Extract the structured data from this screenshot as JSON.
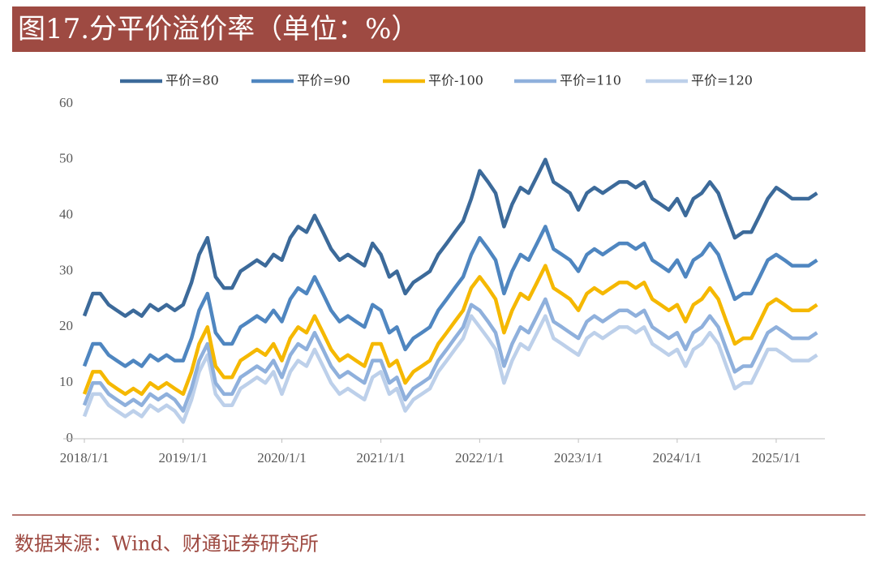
{
  "header": {
    "title": "图17.分平价溢价率（单位：%）"
  },
  "footer": {
    "source": "数据来源：Wind、财通证券研究所"
  },
  "chart_data": {
    "type": "line",
    "x": [
      "2018/1/1",
      "2018/2/1",
      "2018/3/1",
      "2018/4/1",
      "2018/5/1",
      "2018/6/1",
      "2018/7/1",
      "2018/8/1",
      "2018/9/1",
      "2018/10/1",
      "2018/11/1",
      "2018/12/1",
      "2019/1/1",
      "2019/2/1",
      "2019/3/1",
      "2019/4/1",
      "2019/5/1",
      "2019/6/1",
      "2019/7/1",
      "2019/8/1",
      "2019/9/1",
      "2019/10/1",
      "2019/11/1",
      "2019/12/1",
      "2020/1/1",
      "2020/2/1",
      "2020/3/1",
      "2020/4/1",
      "2020/5/1",
      "2020/6/1",
      "2020/7/1",
      "2020/8/1",
      "2020/9/1",
      "2020/10/1",
      "2020/11/1",
      "2020/12/1",
      "2021/1/1",
      "2021/2/1",
      "2021/3/1",
      "2021/4/1",
      "2021/5/1",
      "2021/6/1",
      "2021/7/1",
      "2021/8/1",
      "2021/9/1",
      "2021/10/1",
      "2021/11/1",
      "2021/12/1",
      "2022/1/1",
      "2022/2/1",
      "2022/3/1",
      "2022/4/1",
      "2022/5/1",
      "2022/6/1",
      "2022/7/1",
      "2022/8/1",
      "2022/9/1",
      "2022/10/1",
      "2022/11/1",
      "2022/12/1",
      "2023/1/1",
      "2023/2/1",
      "2023/3/1",
      "2023/4/1",
      "2023/5/1",
      "2023/6/1",
      "2023/7/1",
      "2023/8/1",
      "2023/9/1",
      "2023/10/1",
      "2023/11/1",
      "2023/12/1",
      "2024/1/1",
      "2024/2/1",
      "2024/3/1",
      "2024/4/1",
      "2024/5/1",
      "2024/6/1",
      "2024/7/1",
      "2024/8/1",
      "2024/9/1",
      "2024/10/1",
      "2024/11/1",
      "2024/12/1",
      "2025/1/1",
      "2025/2/1",
      "2025/3/1",
      "2025/4/1",
      "2025/5/1",
      "2025/6/1"
    ],
    "series": [
      {
        "name": "平价=80",
        "color": "#3c6a9a",
        "values": [
          22,
          26,
          26,
          24,
          23,
          22,
          23,
          22,
          24,
          23,
          24,
          23,
          24,
          28,
          33,
          36,
          29,
          27,
          27,
          30,
          31,
          32,
          31,
          33,
          32,
          36,
          38,
          37,
          40,
          37,
          34,
          32,
          33,
          32,
          31,
          35,
          33,
          29,
          30,
          26,
          28,
          29,
          30,
          33,
          35,
          37,
          39,
          43,
          48,
          46,
          44,
          38,
          42,
          45,
          44,
          47,
          50,
          46,
          45,
          44,
          41,
          44,
          45,
          44,
          45,
          46,
          46,
          45,
          46,
          43,
          42,
          41,
          43,
          40,
          43,
          44,
          46,
          44,
          40,
          36,
          37,
          37,
          40,
          43,
          45,
          44,
          43,
          43,
          43,
          44
        ]
      },
      {
        "name": "平价=90",
        "color": "#4f86c0",
        "values": [
          13,
          17,
          17,
          15,
          14,
          13,
          14,
          13,
          15,
          14,
          15,
          14,
          14,
          18,
          23,
          26,
          19,
          17,
          17,
          20,
          21,
          22,
          21,
          23,
          21,
          25,
          27,
          26,
          29,
          26,
          23,
          21,
          22,
          21,
          20,
          24,
          23,
          19,
          20,
          16,
          18,
          19,
          20,
          23,
          25,
          27,
          29,
          33,
          36,
          34,
          32,
          26,
          30,
          33,
          32,
          35,
          38,
          34,
          33,
          32,
          30,
          33,
          34,
          33,
          34,
          35,
          35,
          34,
          35,
          32,
          31,
          30,
          32,
          29,
          32,
          33,
          35,
          33,
          29,
          25,
          26,
          26,
          29,
          32,
          33,
          32,
          31,
          31,
          31,
          32
        ]
      },
      {
        "name": "平价-100",
        "color": "#f5b800",
        "values": [
          8,
          12,
          12,
          10,
          9,
          8,
          9,
          8,
          10,
          9,
          10,
          9,
          8,
          12,
          17,
          20,
          13,
          11,
          11,
          14,
          15,
          16,
          15,
          17,
          14,
          18,
          20,
          19,
          22,
          19,
          16,
          14,
          15,
          14,
          13,
          17,
          17,
          13,
          14,
          10,
          12,
          13,
          14,
          17,
          19,
          21,
          23,
          27,
          29,
          27,
          25,
          19,
          23,
          26,
          25,
          28,
          31,
          27,
          26,
          25,
          23,
          26,
          27,
          26,
          27,
          28,
          28,
          27,
          28,
          25,
          24,
          23,
          24,
          21,
          24,
          25,
          27,
          25,
          21,
          17,
          18,
          18,
          21,
          24,
          25,
          24,
          23,
          23,
          23,
          24
        ]
      },
      {
        "name": "平价=110",
        "color": "#8fb0dc",
        "values": [
          6,
          10,
          10,
          8,
          7,
          6,
          7,
          6,
          8,
          7,
          8,
          7,
          5,
          9,
          14,
          17,
          10,
          8,
          8,
          11,
          12,
          13,
          12,
          14,
          11,
          15,
          17,
          16,
          19,
          16,
          13,
          11,
          12,
          11,
          10,
          14,
          14,
          10,
          11,
          7,
          9,
          10,
          11,
          14,
          16,
          18,
          20,
          24,
          23,
          21,
          19,
          13,
          17,
          20,
          19,
          22,
          25,
          21,
          20,
          19,
          18,
          21,
          22,
          21,
          22,
          23,
          23,
          22,
          23,
          20,
          19,
          18,
          19,
          16,
          19,
          20,
          22,
          20,
          16,
          12,
          13,
          13,
          16,
          19,
          20,
          19,
          18,
          18,
          18,
          19
        ]
      },
      {
        "name": "平价=120",
        "color": "#bdd0ea",
        "values": [
          4,
          8,
          8,
          6,
          5,
          4,
          5,
          4,
          6,
          5,
          6,
          5,
          3,
          7,
          12,
          15,
          8,
          6,
          6,
          9,
          10,
          11,
          10,
          12,
          8,
          12,
          14,
          13,
          16,
          13,
          10,
          8,
          9,
          8,
          7,
          11,
          12,
          8,
          9,
          5,
          7,
          8,
          9,
          12,
          14,
          16,
          18,
          22,
          20,
          18,
          16,
          10,
          14,
          17,
          16,
          19,
          22,
          18,
          17,
          16,
          15,
          18,
          19,
          18,
          19,
          20,
          20,
          19,
          20,
          17,
          16,
          15,
          16,
          13,
          16,
          17,
          19,
          17,
          13,
          9,
          10,
          10,
          13,
          16,
          16,
          15,
          14,
          14,
          14,
          15
        ]
      }
    ],
    "xlim": [
      "2017/10/15",
      "2025/6/30"
    ],
    "xticks": [
      "2018/1/1",
      "2019/1/1",
      "2020/1/1",
      "2021/1/1",
      "2022/1/1",
      "2023/1/1",
      "2024/1/1",
      "2025/1/1"
    ],
    "ylim": [
      0,
      60
    ],
    "yticks": [
      0,
      10,
      20,
      30,
      40,
      50,
      60
    ],
    "grid": false,
    "legend": "top"
  }
}
